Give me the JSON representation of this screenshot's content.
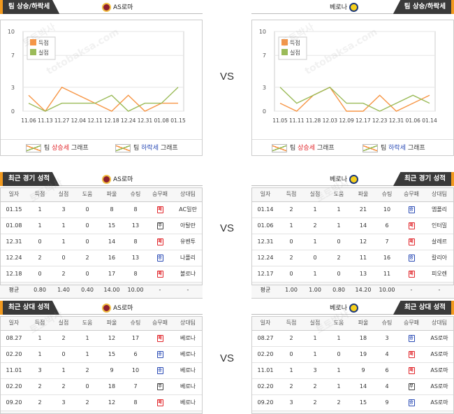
{
  "vs_label": "VS",
  "watermark": "토토박사",
  "watermark_url": "totobaksa.com",
  "left": {
    "team": "AS로마",
    "logo_icon": "as-roma-crest-icon",
    "trend_title": "팀 상승/하락세",
    "legend": [
      {
        "pre": "팀 ",
        "hl": "상승세",
        "post": " 그래프"
      },
      {
        "pre": "팀 ",
        "hl": "하락세",
        "post": " 그래프"
      }
    ],
    "chart_data": {
      "type": "line",
      "categories": [
        "11.06",
        "11.13",
        "11.27",
        "12.04",
        "12.11",
        "12.18",
        "12.24",
        "12.31",
        "01.08",
        "01.15"
      ],
      "yticks": [
        0,
        3,
        7,
        10
      ],
      "ylim": [
        0,
        10
      ],
      "legend_position": "top-left",
      "series": [
        {
          "name": "득점",
          "color": "#f79646",
          "values": [
            2,
            0,
            3,
            2,
            1,
            0,
            2,
            0,
            1,
            1
          ]
        },
        {
          "name": "실점",
          "color": "#9bbb59",
          "values": [
            1,
            0,
            1,
            1,
            1,
            2,
            0,
            1,
            1,
            3
          ]
        }
      ]
    },
    "recent": {
      "title": "최근 경기 성적",
      "headers": [
        "일자",
        "득점",
        "실점",
        "도움",
        "파울",
        "슈팅",
        "승무패",
        "상대팀"
      ],
      "rows": [
        [
          "01.15",
          "1",
          "3",
          "0",
          "8",
          "8",
          "패",
          "AC밀란"
        ],
        [
          "01.08",
          "1",
          "1",
          "0",
          "15",
          "13",
          "무",
          "아탈란"
        ],
        [
          "12.31",
          "0",
          "1",
          "0",
          "14",
          "8",
          "패",
          "유벤투"
        ],
        [
          "12.24",
          "2",
          "0",
          "2",
          "16",
          "13",
          "승",
          "나폴리"
        ],
        [
          "12.18",
          "0",
          "2",
          "0",
          "17",
          "8",
          "패",
          "볼로냐"
        ]
      ],
      "avg": [
        "평균",
        "0.80",
        "1.40",
        "0.40",
        "14.00",
        "10.00",
        "-",
        "-"
      ]
    },
    "h2h": {
      "title": "최근 상대 성적",
      "headers": [
        "일자",
        "득점",
        "실점",
        "도움",
        "파울",
        "슈팅",
        "승무패",
        "상대팀"
      ],
      "rows": [
        [
          "08.27",
          "1",
          "2",
          "1",
          "12",
          "17",
          "패",
          "베로나"
        ],
        [
          "02.20",
          "1",
          "0",
          "1",
          "15",
          "6",
          "승",
          "베로나"
        ],
        [
          "11.01",
          "3",
          "1",
          "2",
          "9",
          "10",
          "승",
          "베로나"
        ],
        [
          "02.20",
          "2",
          "2",
          "0",
          "18",
          "7",
          "무",
          "베로나"
        ],
        [
          "09.20",
          "2",
          "3",
          "2",
          "12",
          "8",
          "패",
          "베로나"
        ]
      ],
      "avg": [
        "평균",
        "1.80",
        "1.60",
        "1.20",
        "13.20",
        "9.60",
        "-",
        "-"
      ]
    }
  },
  "right": {
    "team": "베로나",
    "logo_icon": "hellas-verona-crest-icon",
    "trend_title": "팀 상승/하락세",
    "legend": [
      {
        "pre": "팀 ",
        "hl": "상승세",
        "post": " 그래프"
      },
      {
        "pre": "팀 ",
        "hl": "하락세",
        "post": " 그래프"
      }
    ],
    "chart_data": {
      "type": "line",
      "categories": [
        "11.05",
        "11.11",
        "11.28",
        "12.03",
        "12.09",
        "12.17",
        "12.23",
        "12.31",
        "01.06",
        "01.14"
      ],
      "yticks": [
        0,
        3,
        7,
        10
      ],
      "ylim": [
        0,
        10
      ],
      "legend_position": "top-left",
      "series": [
        {
          "name": "득점",
          "color": "#f79646",
          "values": [
            1,
            0,
            2,
            3,
            0,
            0,
            2,
            0,
            1,
            2
          ]
        },
        {
          "name": "실점",
          "color": "#9bbb59",
          "values": [
            3,
            1,
            2,
            3,
            1,
            1,
            0,
            1,
            2,
            1
          ]
        }
      ]
    },
    "recent": {
      "title": "최근 경기 성적",
      "headers": [
        "일자",
        "득점",
        "실점",
        "도움",
        "파울",
        "슈팅",
        "승무패",
        "상대팀"
      ],
      "rows": [
        [
          "01.14",
          "2",
          "1",
          "1",
          "21",
          "10",
          "승",
          "엠폴리"
        ],
        [
          "01.06",
          "1",
          "2",
          "1",
          "14",
          "6",
          "패",
          "인터밀"
        ],
        [
          "12.31",
          "0",
          "1",
          "0",
          "12",
          "7",
          "패",
          "살레르"
        ],
        [
          "12.24",
          "2",
          "0",
          "2",
          "11",
          "16",
          "승",
          "칼리아"
        ],
        [
          "12.17",
          "0",
          "1",
          "0",
          "13",
          "11",
          "패",
          "피오렌"
        ]
      ],
      "avg": [
        "평균",
        "1.00",
        "1.00",
        "0.80",
        "14.20",
        "10.00",
        "-",
        "-"
      ]
    },
    "h2h": {
      "title": "최근 상대 성적",
      "headers": [
        "일자",
        "득점",
        "실점",
        "도움",
        "파울",
        "슈팅",
        "승무패",
        "상대팀"
      ],
      "rows": [
        [
          "08.27",
          "2",
          "1",
          "1",
          "18",
          "3",
          "승",
          "AS로마"
        ],
        [
          "02.20",
          "0",
          "1",
          "0",
          "19",
          "4",
          "패",
          "AS로마"
        ],
        [
          "11.01",
          "1",
          "3",
          "1",
          "9",
          "6",
          "패",
          "AS로마"
        ],
        [
          "02.20",
          "2",
          "2",
          "1",
          "14",
          "4",
          "무",
          "AS로마"
        ],
        [
          "09.20",
          "3",
          "2",
          "2",
          "15",
          "9",
          "승",
          "AS로마"
        ]
      ],
      "avg": [
        "평균",
        "1.60",
        "1.80",
        "1.00",
        "15.00",
        "5.20",
        "-",
        "-"
      ]
    }
  }
}
